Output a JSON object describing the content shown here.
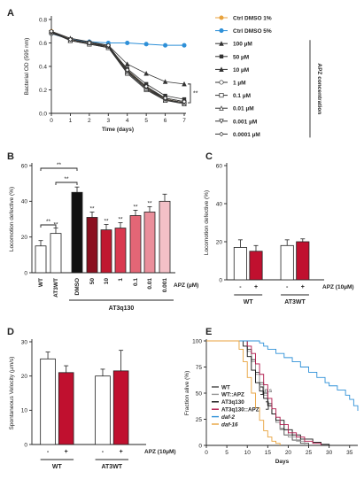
{
  "chart_data": [
    {
      "panel": "A",
      "type": "line",
      "xlabel": "Time (days)",
      "ylabel": "Bacterial OD (595 nm)",
      "xlim": [
        0,
        7
      ],
      "ylim": [
        0,
        0.8
      ],
      "xticks": [
        "0",
        "1",
        "2",
        "3",
        "4",
        "5",
        "6",
        "7"
      ],
      "yticks": [
        "0.0",
        "0.2",
        "0.4",
        "0.6",
        "0.8"
      ],
      "legend_title": "APZ concentration",
      "significance": "**",
      "x": [
        0,
        1,
        2,
        3,
        4,
        5,
        6,
        7
      ],
      "series": [
        {
          "name": "Ctrl DMSO 1%",
          "color": "#e8a23c",
          "marker": "circle",
          "values": [
            0.7,
            0.63,
            0.6,
            0.57,
            0.37,
            0.22,
            0.12,
            0.09
          ]
        },
        {
          "name": "Ctrl DMSO 5%",
          "color": "#2e90d8",
          "marker": "circle",
          "values": [
            0.68,
            0.63,
            0.61,
            0.6,
            0.6,
            0.59,
            0.58,
            0.58
          ]
        },
        {
          "name": "100 µM",
          "color": "#333333",
          "marker": "triangle",
          "values": [
            0.7,
            0.64,
            0.61,
            0.58,
            0.42,
            0.34,
            0.27,
            0.25
          ]
        },
        {
          "name": "50 µM",
          "color": "#333333",
          "marker": "square",
          "values": [
            0.69,
            0.63,
            0.6,
            0.57,
            0.38,
            0.25,
            0.15,
            0.12
          ]
        },
        {
          "name": "10 µM",
          "color": "#333333",
          "marker": "triangle",
          "values": [
            0.7,
            0.62,
            0.59,
            0.56,
            0.36,
            0.22,
            0.13,
            0.1
          ]
        },
        {
          "name": "1 µM",
          "color": "#333333",
          "marker": "circle-open",
          "values": [
            0.68,
            0.63,
            0.6,
            0.56,
            0.35,
            0.21,
            0.12,
            0.09
          ]
        },
        {
          "name": "0.1 µM",
          "color": "#333333",
          "marker": "square-open",
          "values": [
            0.69,
            0.62,
            0.59,
            0.56,
            0.34,
            0.2,
            0.11,
            0.09
          ]
        },
        {
          "name": "0.01 µM",
          "color": "#333333",
          "marker": "triangle-open",
          "values": [
            0.7,
            0.62,
            0.6,
            0.57,
            0.35,
            0.21,
            0.11,
            0.08
          ]
        },
        {
          "name": "0.001 µM",
          "color": "#333333",
          "marker": "triangle-down-open",
          "values": [
            0.69,
            0.63,
            0.6,
            0.57,
            0.36,
            0.22,
            0.12,
            0.09
          ]
        },
        {
          "name": "0.0001 µM",
          "color": "#333333",
          "marker": "diamond-open",
          "values": [
            0.7,
            0.63,
            0.6,
            0.58,
            0.37,
            0.23,
            0.13,
            0.1
          ]
        }
      ]
    },
    {
      "panel": "B",
      "type": "bar",
      "ylabel": "Locomotion defective (%)",
      "ylim": [
        0,
        60
      ],
      "yticks": [
        "0",
        "20",
        "40",
        "60"
      ],
      "categories": [
        "WT",
        "AT3WT",
        "DMSO",
        "50",
        "10",
        "1",
        "0.1",
        "0.01",
        "0.001"
      ],
      "values": [
        15,
        22,
        45,
        31,
        24,
        25,
        32,
        34,
        40
      ],
      "errors": [
        3,
        3,
        3,
        3,
        3,
        3,
        3,
        3,
        4
      ],
      "colors": [
        "#ffffff",
        "#ffffff",
        "#111111",
        "#8b1020",
        "#c0182f",
        "#d9384f",
        "#e36676",
        "#ea8f9b",
        "#f3c0c7"
      ],
      "stars": [
        "",
        "**",
        "",
        "**",
        "**",
        "**",
        "**",
        "**",
        ""
      ],
      "brackets": [
        {
          "from": "WT",
          "to": "AT3WT",
          "label": "**"
        },
        {
          "from": "WT",
          "to": "DMSO",
          "label": "**"
        },
        {
          "from": "AT3WT",
          "to": "DMSO",
          "label": "**"
        }
      ],
      "xaxis_label": "APZ (µM)",
      "group_label": "AT3q130"
    },
    {
      "panel": "C",
      "type": "bar",
      "ylabel": "Locomotion defective (%)",
      "ylim": [
        0,
        60
      ],
      "yticks": [
        "0",
        "20",
        "40",
        "60"
      ],
      "tick_labels": [
        "-",
        "+",
        "-",
        "+"
      ],
      "groups": [
        "WT",
        "AT3WT"
      ],
      "values": [
        17,
        15,
        18,
        20
      ],
      "errors": [
        4,
        3,
        3,
        1.5
      ],
      "colors": [
        "#ffffff",
        "#c0102f",
        "#ffffff",
        "#c0102f"
      ],
      "treatment_label": "APZ (10µM)"
    },
    {
      "panel": "D",
      "type": "bar",
      "ylabel": "Spontaneous Velocity (µm/s)",
      "ylim": [
        0,
        30
      ],
      "yticks": [
        "0",
        "10",
        "20",
        "30"
      ],
      "tick_labels": [
        "-",
        "+",
        "-",
        "+"
      ],
      "groups": [
        "WT",
        "AT3WT"
      ],
      "values": [
        25,
        21,
        20,
        21.5
      ],
      "errors": [
        2,
        2,
        2,
        6
      ],
      "colors": [
        "#ffffff",
        "#c0102f",
        "#ffffff",
        "#c0102f"
      ],
      "treatment_label": "APZ (10µM)"
    },
    {
      "panel": "E",
      "type": "line",
      "xlabel": "Days",
      "ylabel": "Fraction alive (%)",
      "xlim": [
        0,
        37
      ],
      "ylim": [
        0,
        100
      ],
      "xticks": [
        "0",
        "5",
        "10",
        "15",
        "20",
        "25",
        "30",
        "35"
      ],
      "yticks": [
        "0",
        "25",
        "50",
        "75",
        "100"
      ],
      "annotation": "n.s",
      "series": [
        {
          "name": "WT",
          "color": "#444444",
          "points": [
            [
              0,
              100
            ],
            [
              9,
              100
            ],
            [
              10,
              92
            ],
            [
              11,
              82
            ],
            [
              12,
              70
            ],
            [
              13,
              60
            ],
            [
              14,
              50
            ],
            [
              15,
              40
            ],
            [
              16,
              30
            ],
            [
              17,
              22
            ],
            [
              18,
              16
            ],
            [
              19,
              10
            ],
            [
              21,
              5
            ],
            [
              23,
              2
            ],
            [
              25,
              0
            ]
          ]
        },
        {
          "name": "WT::APZ",
          "color": "#999999",
          "points": [
            [
              0,
              100
            ],
            [
              9,
              100
            ],
            [
              10,
              90
            ],
            [
              11,
              80
            ],
            [
              12,
              68
            ],
            [
              13,
              58
            ],
            [
              14,
              48
            ],
            [
              15,
              38
            ],
            [
              16,
              30
            ],
            [
              17,
              22
            ],
            [
              18,
              15
            ],
            [
              20,
              8
            ],
            [
              22,
              4
            ],
            [
              24,
              0
            ]
          ]
        },
        {
          "name": "AT3q130",
          "color": "#111111",
          "points": [
            [
              0,
              100
            ],
            [
              8,
              100
            ],
            [
              9,
              95
            ],
            [
              10,
              85
            ],
            [
              11,
              72
            ],
            [
              12,
              60
            ],
            [
              13,
              52
            ],
            [
              14,
              45
            ],
            [
              15,
              38
            ],
            [
              16,
              30
            ],
            [
              17,
              24
            ],
            [
              19,
              15
            ],
            [
              21,
              10
            ],
            [
              23,
              6
            ],
            [
              26,
              3
            ],
            [
              28,
              1
            ],
            [
              30,
              0
            ]
          ]
        },
        {
          "name": "AT3q130::APZ",
          "color": "#b0184a",
          "points": [
            [
              0,
              100
            ],
            [
              9,
              100
            ],
            [
              10,
              95
            ],
            [
              11,
              88
            ],
            [
              12,
              78
            ],
            [
              13,
              68
            ],
            [
              14,
              58
            ],
            [
              15,
              45
            ],
            [
              16,
              35
            ],
            [
              17,
              27
            ],
            [
              18,
              20
            ],
            [
              20,
              12
            ],
            [
              22,
              8
            ],
            [
              24,
              4
            ],
            [
              26,
              2
            ],
            [
              28,
              0
            ]
          ]
        },
        {
          "name": "daf-2",
          "color": "#2e90d8",
          "points": [
            [
              0,
              100
            ],
            [
              12,
              100
            ],
            [
              13,
              98
            ],
            [
              14,
              95
            ],
            [
              15,
              92
            ],
            [
              17,
              88
            ],
            [
              19,
              84
            ],
            [
              21,
              80
            ],
            [
              23,
              75
            ],
            [
              25,
              70
            ],
            [
              27,
              65
            ],
            [
              29,
              60
            ],
            [
              30,
              57
            ],
            [
              32,
              53
            ],
            [
              34,
              48
            ],
            [
              35,
              44
            ],
            [
              36,
              38
            ],
            [
              37,
              33
            ]
          ]
        },
        {
          "name": "daf-16",
          "color": "#e8a23c",
          "points": [
            [
              0,
              100
            ],
            [
              7,
              100
            ],
            [
              8,
              92
            ],
            [
              9,
              80
            ],
            [
              10,
              65
            ],
            [
              11,
              50
            ],
            [
              12,
              36
            ],
            [
              13,
              24
            ],
            [
              14,
              14
            ],
            [
              15,
              8
            ],
            [
              16,
              4
            ],
            [
              17,
              2
            ],
            [
              18,
              0
            ]
          ]
        }
      ]
    }
  ]
}
